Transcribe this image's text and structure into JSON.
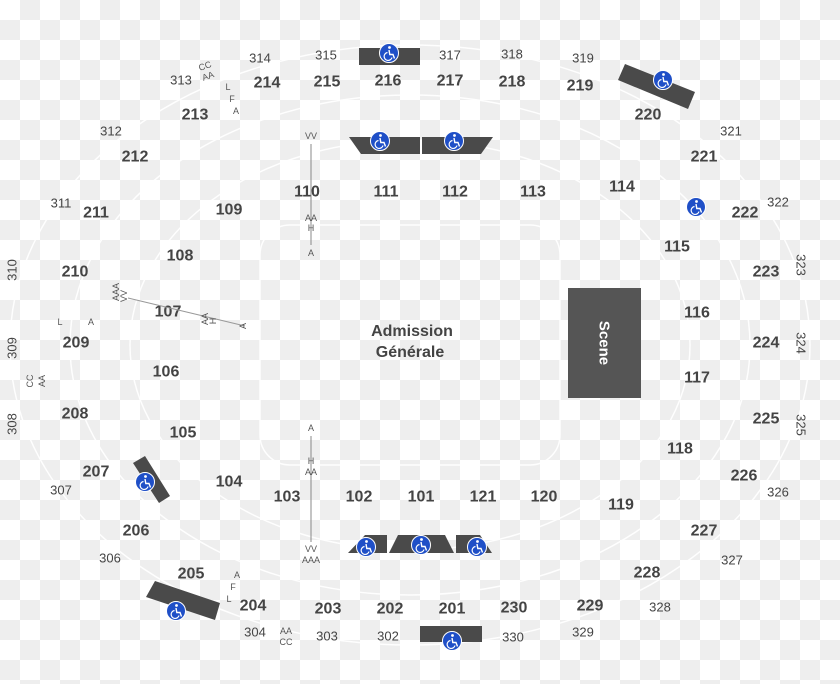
{
  "floor": {
    "line1": "Admission",
    "line2": "Générale"
  },
  "stage": {
    "label": "Scene"
  },
  "colors": {
    "accessible": "#1f4fc7",
    "bar": "#4a4a4a",
    "text": "#444444",
    "stage": "#555555"
  },
  "icons": {
    "accessible": "wheelchair-icon"
  },
  "sections_100": [
    "101",
    "102",
    "103",
    "104",
    "105",
    "106",
    "107",
    "108",
    "109",
    "110",
    "111",
    "112",
    "113",
    "114",
    "115",
    "116",
    "117",
    "118",
    "119",
    "120",
    "121"
  ],
  "sections_200": [
    "201",
    "202",
    "203",
    "204",
    "205",
    "206",
    "207",
    "208",
    "209",
    "210",
    "211",
    "212",
    "213",
    "214",
    "215",
    "216",
    "217",
    "218",
    "219",
    "220",
    "221",
    "222",
    "223",
    "224",
    "225",
    "226",
    "227",
    "228",
    "229",
    "230"
  ],
  "sections_300": [
    "302",
    "303",
    "304",
    "306",
    "307",
    "308",
    "309",
    "310",
    "311",
    "312",
    "313",
    "314",
    "315",
    "317",
    "318",
    "319",
    "321",
    "322",
    "323",
    "324",
    "325",
    "326",
    "327",
    "328",
    "329",
    "330"
  ],
  "row_markers": {
    "s313": [
      "CC",
      "AA"
    ],
    "s214": [
      "L",
      "F",
      "A"
    ],
    "s110": [
      "VV",
      "AA",
      "H",
      "A"
    ],
    "s107_top": [
      "AAA",
      "VV"
    ],
    "s107": [
      "AA",
      "H",
      "A"
    ],
    "s209": [
      "L",
      "A"
    ],
    "s309": [
      "CC",
      "AA"
    ],
    "s103": [
      "A",
      "H",
      "AA",
      "VV",
      "AAA"
    ],
    "s204": [
      "A",
      "F",
      "L"
    ],
    "s303": [
      "AA",
      "CC"
    ]
  }
}
